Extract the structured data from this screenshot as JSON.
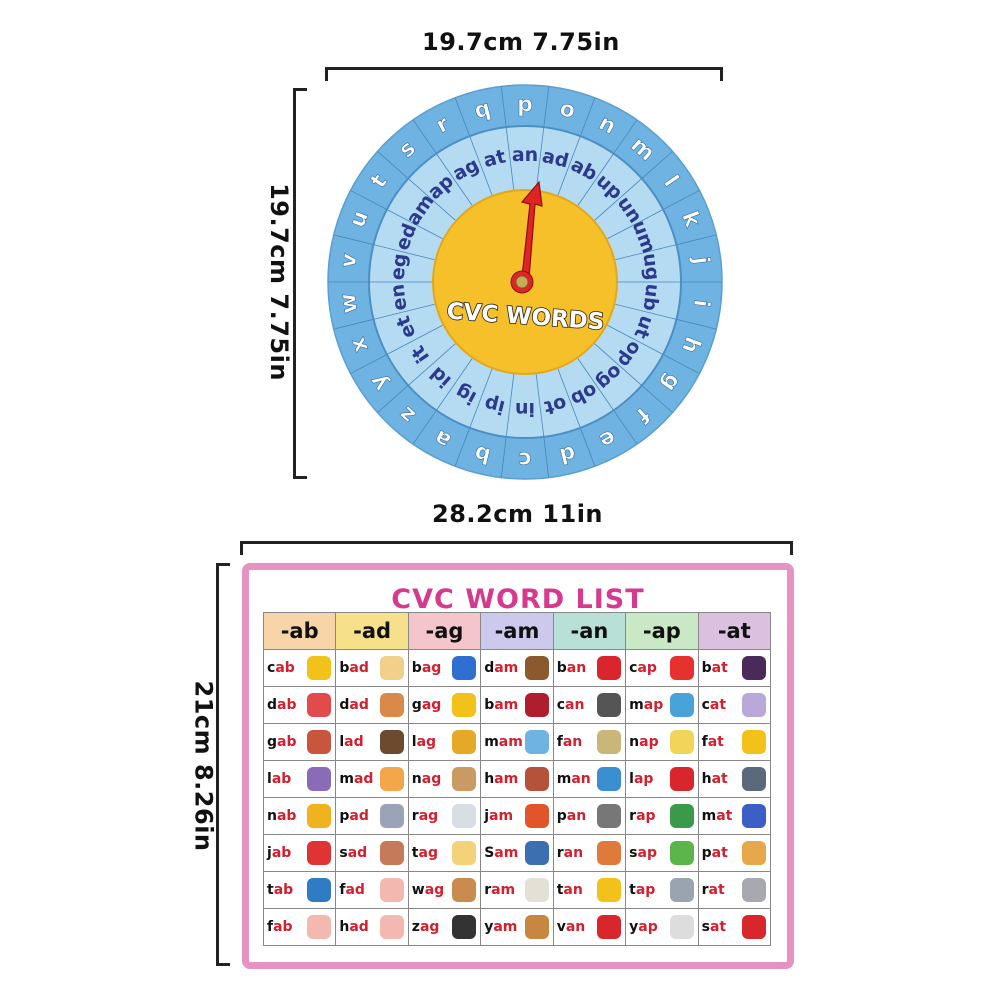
{
  "wheel_dimensions": {
    "width_label": "19.7cm 7.75in",
    "height_label": "19.7cm 7.75in"
  },
  "board_dimensions": {
    "width_label": "28.2cm 11in",
    "height_label": "21cm 8.26in"
  },
  "wheel": {
    "center_title": "CVC WORDS",
    "outer_letters": [
      "p",
      "o",
      "n",
      "m",
      "l",
      "k",
      "j",
      "i",
      "h",
      "g",
      "f",
      "e",
      "d",
      "c",
      "b",
      "a",
      "z",
      "y",
      "x",
      "w",
      "v",
      "u",
      "t",
      "s",
      "r",
      "q"
    ],
    "inner_rimes": [
      "an",
      "ad",
      "ab",
      "up",
      "un",
      "um",
      "ug",
      "ub",
      "ut",
      "op",
      "og",
      "ob",
      "ot",
      "in",
      "ip",
      "ig",
      "id",
      "it",
      "et",
      "en",
      "eg",
      "ed",
      "am",
      "ap",
      "ag",
      "at"
    ],
    "colors": {
      "outer": "#6fb3e3",
      "inner": "#b5dbf3",
      "center": "#f5c02a",
      "text": "#2c3a8c",
      "pointer": "#e02424"
    }
  },
  "word_list": {
    "title": "CVC WORD LIST",
    "headers": [
      {
        "label": "-ab",
        "color": "#f8d5a8"
      },
      {
        "label": "-ad",
        "color": "#f6e08a"
      },
      {
        "label": "-ag",
        "color": "#f4c6cc"
      },
      {
        "label": "-am",
        "color": "#cdc9ec"
      },
      {
        "label": "-an",
        "color": "#b8e0d6"
      },
      {
        "label": "-ap",
        "color": "#c9e8c6"
      },
      {
        "label": "-at",
        "color": "#dcc0e0"
      }
    ],
    "columns": [
      [
        {
          "on": "c",
          "rime": "ab",
          "icon": "taxi-icon",
          "c": "#f2c21b"
        },
        {
          "on": "d",
          "rime": "ab",
          "icon": "dab-stamp-icon",
          "c": "#e14b4b"
        },
        {
          "on": "g",
          "rime": "ab",
          "icon": "kids-talking-icon",
          "c": "#c8553d"
        },
        {
          "on": "l",
          "rime": "ab",
          "icon": "microscope-icon",
          "c": "#8a6bb8"
        },
        {
          "on": "n",
          "rime": "ab",
          "icon": "cat-catching-icon",
          "c": "#f0b21e"
        },
        {
          "on": "j",
          "rime": "ab",
          "icon": "boxer-boy-icon",
          "c": "#e03434"
        },
        {
          "on": "t",
          "rime": "ab",
          "icon": "notebook-tab-icon",
          "c": "#2f7bc4"
        },
        {
          "on": "f",
          "rime": "ab",
          "icon": "fab-handwriting-icon",
          "c": "#f3b8b0"
        }
      ],
      [
        {
          "on": "b",
          "rime": "ad",
          "icon": "thumbs-down-icon",
          "c": "#f1d08a"
        },
        {
          "on": "d",
          "rime": "ad",
          "icon": "dad-family-icon",
          "c": "#d98a4a"
        },
        {
          "on": "l",
          "rime": "ad",
          "icon": "boy-lad-icon",
          "c": "#6b4a2e"
        },
        {
          "on": "m",
          "rime": "ad",
          "icon": "mad-face-icon",
          "c": "#f3a64a"
        },
        {
          "on": "p",
          "rime": "ad",
          "icon": "notepad-icon",
          "c": "#9aa3b8"
        },
        {
          "on": "s",
          "rime": "ad",
          "icon": "sad-face-icon",
          "c": "#c57b5a"
        },
        {
          "on": "f",
          "rime": "ad",
          "icon": "fad-handwriting-icon",
          "c": "#f3b8b0"
        },
        {
          "on": "h",
          "rime": "ad",
          "icon": "had-handwriting-icon",
          "c": "#f3b8b0"
        }
      ],
      [
        {
          "on": "b",
          "rime": "ag",
          "icon": "shopping-bag-icon",
          "c": "#2f6fd0"
        },
        {
          "on": "g",
          "rime": "ag",
          "icon": "gagged-face-icon",
          "c": "#f2c21b"
        },
        {
          "on": "l",
          "rime": "ag",
          "icon": "snail-icon",
          "c": "#e6a827"
        },
        {
          "on": "n",
          "rime": "ag",
          "icon": "horse-icon",
          "c": "#c99a62"
        },
        {
          "on": "r",
          "rime": "ag",
          "icon": "rag-cloth-icon",
          "c": "#d8dde6"
        },
        {
          "on": "t",
          "rime": "ag",
          "icon": "tag-icon",
          "c": "#f3d27a"
        },
        {
          "on": "w",
          "rime": "ag",
          "icon": "dog-wagging-icon",
          "c": "#c98c4e"
        },
        {
          "on": "z",
          "rime": "ag",
          "icon": "zigzag-icon",
          "c": "#333333"
        }
      ],
      [
        {
          "on": "d",
          "rime": "am",
          "icon": "beaver-dam-icon",
          "c": "#8a5a2e"
        },
        {
          "on": "b",
          "rime": "am",
          "icon": "bam-burst-icon",
          "c": "#b01e2e"
        },
        {
          "on": "m",
          "rime": "am",
          "icon": "mom-icon",
          "c": "#6fb3e3"
        },
        {
          "on": "h",
          "rime": "am",
          "icon": "ham-icon",
          "c": "#b5533a"
        },
        {
          "on": "j",
          "rime": "am",
          "icon": "jam-jar-icon",
          "c": "#e0552a"
        },
        {
          "on": "S",
          "rime": "am",
          "icon": "boy-sam-icon",
          "c": "#3b6fb0"
        },
        {
          "on": "r",
          "rime": "am",
          "icon": "ram-icon",
          "c": "#e5e0d6"
        },
        {
          "on": "y",
          "rime": "am",
          "icon": "yam-icon",
          "c": "#c88740"
        }
      ],
      [
        {
          "on": "b",
          "rime": "an",
          "icon": "ban-sign-icon",
          "c": "#d9262c"
        },
        {
          "on": "c",
          "rime": "an",
          "icon": "can-icon",
          "c": "#555555"
        },
        {
          "on": "f",
          "rime": "an",
          "icon": "fan-icon",
          "c": "#c9b77a"
        },
        {
          "on": "m",
          "rime": "an",
          "icon": "man-icon",
          "c": "#3b8fd0"
        },
        {
          "on": "p",
          "rime": "an",
          "icon": "frying-pan-icon",
          "c": "#777777"
        },
        {
          "on": "r",
          "rime": "an",
          "icon": "running-boy-icon",
          "c": "#e07a3a"
        },
        {
          "on": "t",
          "rime": "an",
          "icon": "sunbathing-icon",
          "c": "#f2c21b"
        },
        {
          "on": "v",
          "rime": "an",
          "icon": "van-icon",
          "c": "#d9262c"
        }
      ],
      [
        {
          "on": "c",
          "rime": "ap",
          "icon": "cap-icon",
          "c": "#e6322f"
        },
        {
          "on": "m",
          "rime": "ap",
          "icon": "map-icon",
          "c": "#4aa3d8"
        },
        {
          "on": "n",
          "rime": "ap",
          "icon": "napping-icon",
          "c": "#f2d45a"
        },
        {
          "on": "l",
          "rime": "ap",
          "icon": "santa-lap-icon",
          "c": "#d9262c"
        },
        {
          "on": "r",
          "rime": "ap",
          "icon": "rapping-kids-icon",
          "c": "#3b9a4a"
        },
        {
          "on": "s",
          "rime": "ap",
          "icon": "tree-sap-icon",
          "c": "#5cb54a"
        },
        {
          "on": "t",
          "rime": "ap",
          "icon": "faucet-tap-icon",
          "c": "#9aa3b0"
        },
        {
          "on": "y",
          "rime": "ap",
          "icon": "yapping-dog-icon",
          "c": "#dddddd"
        }
      ],
      [
        {
          "on": "b",
          "rime": "at",
          "icon": "bat-icon",
          "c": "#4a2a5a"
        },
        {
          "on": "c",
          "rime": "at",
          "icon": "cat-icon",
          "c": "#b9a8d8"
        },
        {
          "on": "f",
          "rime": "at",
          "icon": "fat-cat-icon",
          "c": "#f2c21b"
        },
        {
          "on": "h",
          "rime": "at",
          "icon": "top-hat-icon",
          "c": "#5a6a7a"
        },
        {
          "on": "m",
          "rime": "at",
          "icon": "mat-icon",
          "c": "#3b5fc4"
        },
        {
          "on": "p",
          "rime": "at",
          "icon": "girl-patting-dog-icon",
          "c": "#e6a84a"
        },
        {
          "on": "r",
          "rime": "at",
          "icon": "rat-icon",
          "c": "#a8a8b0"
        },
        {
          "on": "s",
          "rime": "at",
          "icon": "sitting-boy-icon",
          "c": "#d9262c"
        }
      ]
    ]
  }
}
